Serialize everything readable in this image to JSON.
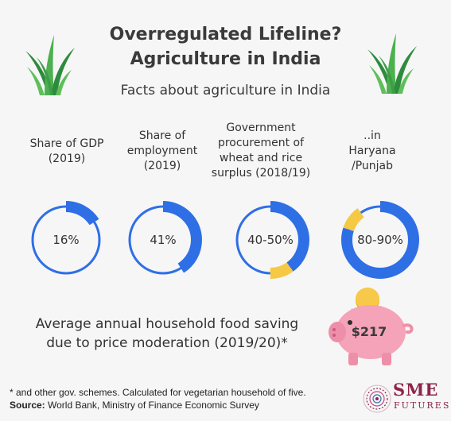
{
  "header": {
    "title_line1": "Overregulated Lifeline?",
    "title_line2": "Agriculture in India",
    "subtitle": "Facts about agriculture in India"
  },
  "facts": [
    {
      "label_lines": [
        "Share of GDP",
        "(2019)"
      ],
      "value": "16%",
      "share_blue": 0.16,
      "share_yellow": 0
    },
    {
      "label_lines": [
        "Share of",
        "employment",
        "(2019)"
      ],
      "value": "41%",
      "share_blue": 0.41,
      "share_yellow": 0
    },
    {
      "label_lines": [
        "Government",
        "procurement of",
        "wheat and rice",
        "surplus (2018/19)"
      ],
      "value": "40-50%",
      "share_blue": 0.4,
      "share_yellow": 0.1
    },
    {
      "label_lines": [
        "..in",
        "Haryana",
        "/Punjab"
      ],
      "value": "80-90%",
      "share_blue": 0.8,
      "share_yellow": 0.1
    }
  ],
  "saving": {
    "line1": "Average annual household food saving",
    "line2": "due to price moderation (2019/20)*",
    "amount": "$217"
  },
  "footer": {
    "note": "* and other gov. schemes. Calculated for vegetarian household of five.",
    "source_label": "Source:",
    "source_text": " World Bank, Ministry of Finance Economic Survey"
  },
  "logo": {
    "line1": "SME",
    "line2": "FUTURES"
  },
  "colors": {
    "blue": "#2f6fe5",
    "yellow": "#f6c945",
    "pig": "#f4a3b8",
    "coin": "#f7c948",
    "grass": "#3fa64a",
    "brand": "#8d2449"
  }
}
